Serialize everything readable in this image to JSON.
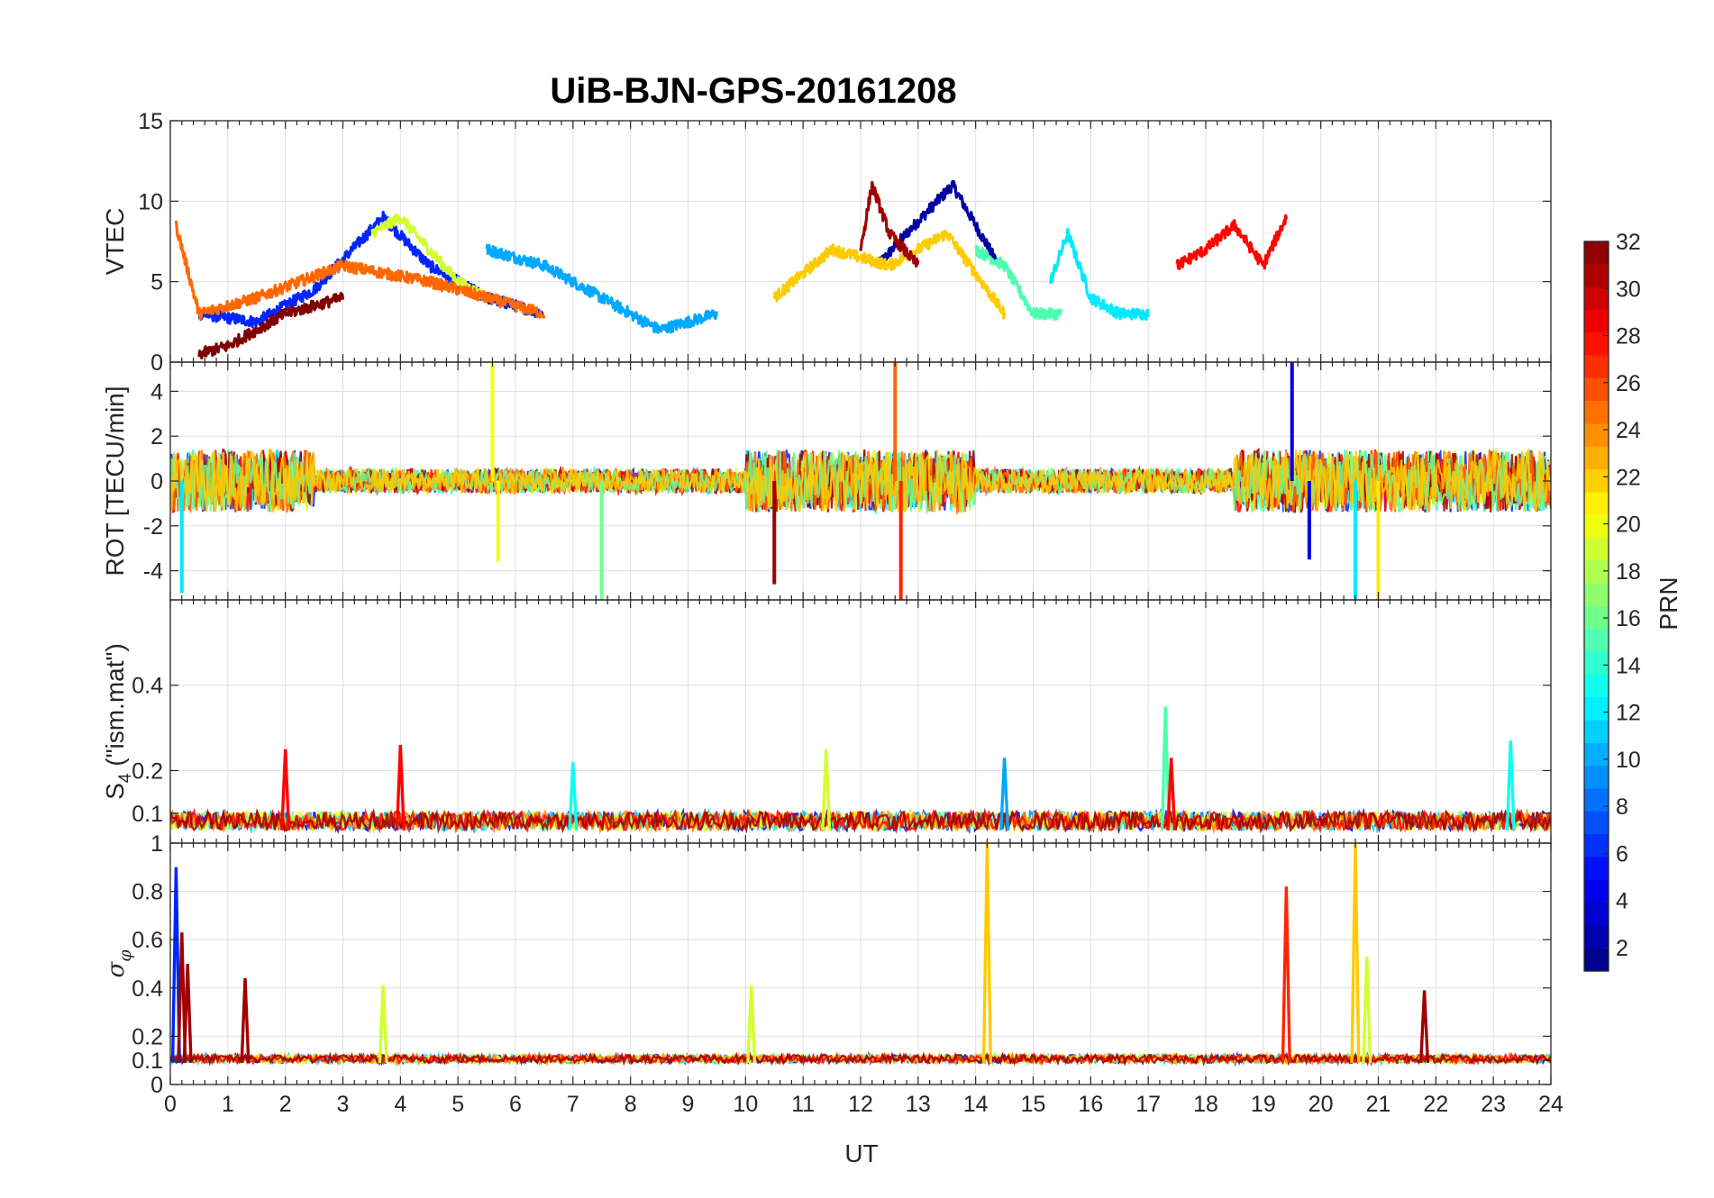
{
  "chart_data": {
    "type": "line",
    "title": "UiB-BJN-GPS-20161208",
    "xlabel": "UT",
    "xlim": [
      0,
      24
    ],
    "xticks": [
      "0",
      "1",
      "2",
      "3",
      "4",
      "5",
      "6",
      "7",
      "8",
      "9",
      "10",
      "11",
      "12",
      "13",
      "14",
      "15",
      "16",
      "17",
      "18",
      "19",
      "20",
      "21",
      "22",
      "23",
      "24"
    ],
    "colorbar": {
      "label": "PRN",
      "range": [
        1,
        32
      ],
      "ticks": [
        "2",
        "4",
        "6",
        "8",
        "10",
        "12",
        "14",
        "16",
        "18",
        "20",
        "22",
        "24",
        "26",
        "28",
        "30",
        "32"
      ]
    },
    "panels": [
      {
        "ylabel": "VTEC",
        "ylim": [
          0,
          15
        ],
        "yticks": [
          "0",
          "5",
          "10",
          "15"
        ],
        "series": [
          {
            "name": "PRN 2",
            "prn": 2,
            "x": [
              12.3,
              12.8,
              13.2,
              13.6,
              14.0,
              14.4
            ],
            "y": [
              6,
              8,
              9.5,
              11,
              8.5,
              6
            ]
          },
          {
            "name": "PRN 6",
            "prn": 6,
            "x": [
              0.5,
              1.5,
              2.5,
              3.7,
              4.5,
              5.5,
              6.5
            ],
            "y": [
              3,
              2.5,
              4.5,
              9,
              6,
              4,
              3
            ]
          },
          {
            "name": "PRN 10",
            "prn": 10,
            "x": [
              5.5,
              6.5,
              7.5,
              8.5,
              9.5
            ],
            "y": [
              7,
              6,
              4,
              2,
              3
            ]
          },
          {
            "name": "PRN 12",
            "prn": 12,
            "x": [
              15.3,
              15.6,
              16.0,
              16.5,
              17.0
            ],
            "y": [
              5,
              8,
              4,
              3,
              3
            ]
          },
          {
            "name": "PRN 15",
            "prn": 15,
            "x": [
              14.0,
              14.5,
              15.0,
              15.5
            ],
            "y": [
              7,
              6,
              3,
              3
            ]
          },
          {
            "name": "PRN 19",
            "prn": 19,
            "x": [
              3.5,
              4.0,
              4.5,
              5.0,
              5.5
            ],
            "y": [
              8,
              9,
              7,
              5,
              4
            ]
          },
          {
            "name": "PRN 22",
            "prn": 22,
            "x": [
              10.5,
              11.5,
              12.5,
              13.5,
              14.5
            ],
            "y": [
              4,
              7,
              6,
              8,
              3
            ]
          },
          {
            "name": "PRN 25",
            "prn": 25,
            "x": [
              0.1,
              0.5,
              1.5,
              3.0,
              4.5,
              5.5,
              6.5
            ],
            "y": [
              8.5,
              3,
              4,
              6,
              5,
              4,
              3
            ]
          },
          {
            "name": "PRN 28",
            "prn": 28,
            "x": [
              17.5,
              18.0,
              18.5,
              19.0,
              19.4
            ],
            "y": [
              6,
              7,
              8.5,
              6,
              9
            ]
          },
          {
            "name": "PRN 31",
            "prn": 31,
            "x": [
              12.0,
              12.2,
              12.5,
              13.0
            ],
            "y": [
              7,
              11,
              8,
              6
            ]
          },
          {
            "name": "PRN 32",
            "prn": 32,
            "x": [
              0.5,
              1.0,
              2.0,
              3.0
            ],
            "y": [
              0.5,
              1,
              3,
              4
            ]
          }
        ]
      },
      {
        "ylabel": "ROT [TECU/min]",
        "ylim": [
          -5.3,
          5.3
        ],
        "yticks": [
          "-4",
          "-2",
          "0",
          "2",
          "4"
        ],
        "spikes": [
          {
            "prn": 12,
            "x": 0.2,
            "y": -5
          },
          {
            "prn": 20,
            "x": 5.6,
            "y": 5.3
          },
          {
            "prn": 20,
            "x": 5.7,
            "y": -3.6
          },
          {
            "prn": 16,
            "x": 7.5,
            "y": -5.3
          },
          {
            "prn": 31,
            "x": 10.5,
            "y": -4.6
          },
          {
            "prn": 25,
            "x": 12.6,
            "y": 5.3
          },
          {
            "prn": 27,
            "x": 12.7,
            "y": -5.3
          },
          {
            "prn": 4,
            "x": 19.5,
            "y": 5.3
          },
          {
            "prn": 4,
            "x": 19.8,
            "y": -3.5
          },
          {
            "prn": 12,
            "x": 20.6,
            "y": -5.3
          },
          {
            "prn": 21,
            "x": 21.0,
            "y": -5.3
          }
        ]
      },
      {
        "ylabel": "S4 (\"ism.mat\")",
        "ylabel_main": "S",
        "ylabel_sub": "4",
        "ylabel_rest": " (\"ism.mat\")",
        "ylim": [
          0.03,
          0.6
        ],
        "yticks": [
          "0.1",
          "0.2",
          "0.4"
        ],
        "peaks": [
          {
            "prn": 28,
            "x": 2.0,
            "y": 0.25
          },
          {
            "prn": 28,
            "x": 4.0,
            "y": 0.26
          },
          {
            "prn": 13,
            "x": 7.0,
            "y": 0.22
          },
          {
            "prn": 19,
            "x": 11.4,
            "y": 0.25
          },
          {
            "prn": 10,
            "x": 14.5,
            "y": 0.23
          },
          {
            "prn": 15,
            "x": 17.3,
            "y": 0.35
          },
          {
            "prn": 28,
            "x": 17.4,
            "y": 0.23
          },
          {
            "prn": 13,
            "x": 23.3,
            "y": 0.27
          }
        ]
      },
      {
        "ylabel": "σφ",
        "ylabel_main": "σ",
        "ylabel_sub": "φ",
        "ylim": [
          0,
          1
        ],
        "yticks": [
          "0",
          "0.1",
          "0.2",
          "0.4",
          "0.6",
          "0.8",
          "1"
        ],
        "peaks": [
          {
            "prn": 6,
            "x": 0.1,
            "y": 0.9
          },
          {
            "prn": 31,
            "x": 0.2,
            "y": 0.63
          },
          {
            "prn": 31,
            "x": 0.3,
            "y": 0.5
          },
          {
            "prn": 31,
            "x": 1.3,
            "y": 0.44
          },
          {
            "prn": 19,
            "x": 3.7,
            "y": 0.41
          },
          {
            "prn": 19,
            "x": 10.1,
            "y": 0.41
          },
          {
            "prn": 22,
            "x": 14.2,
            "y": 1.0
          },
          {
            "prn": 27,
            "x": 19.4,
            "y": 0.82
          },
          {
            "prn": 22,
            "x": 20.6,
            "y": 1.0
          },
          {
            "prn": 19,
            "x": 20.8,
            "y": 0.53
          },
          {
            "prn": 31,
            "x": 21.8,
            "y": 0.39
          }
        ]
      }
    ]
  }
}
